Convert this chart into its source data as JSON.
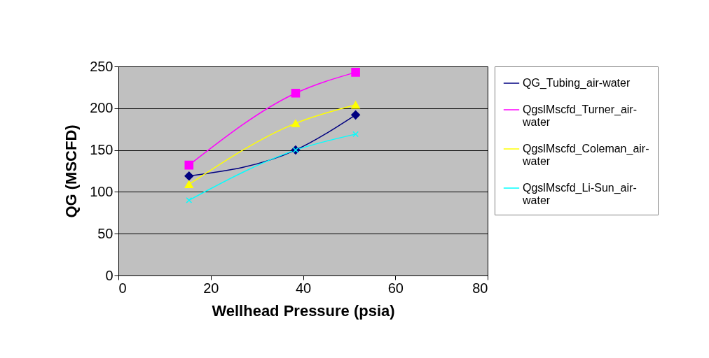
{
  "chart_data": {
    "type": "line",
    "xlabel": "Wellhead Pressure (psia)",
    "ylabel": "QG (MSCFD)",
    "x": [
      15.3,
      38.4,
      51.4
    ],
    "series": [
      {
        "name": "QG_Tubing_air-water",
        "color": "#000080",
        "marker": "diamond",
        "values": [
          119,
          150,
          192
        ]
      },
      {
        "name": "QgslMscfd_Turner_air-water",
        "color": "#ff00ff",
        "marker": "square",
        "values": [
          132,
          218,
          243
        ]
      },
      {
        "name": "QgslMscfd_Coleman_air-water",
        "color": "#ffff00",
        "marker": "triangle",
        "values": [
          109,
          182,
          204
        ]
      },
      {
        "name": "QgslMscfd_Li-Sun_air-water",
        "color": "#00ffff",
        "marker": "cross",
        "values": [
          90,
          150,
          169
        ]
      }
    ],
    "xlim": [
      0,
      80
    ],
    "xticks": [
      0,
      20,
      40,
      60,
      80
    ],
    "ylim": [
      0,
      250
    ],
    "yticks": [
      0,
      50,
      100,
      150,
      200,
      250
    ],
    "grid": "y",
    "legend": "right"
  }
}
